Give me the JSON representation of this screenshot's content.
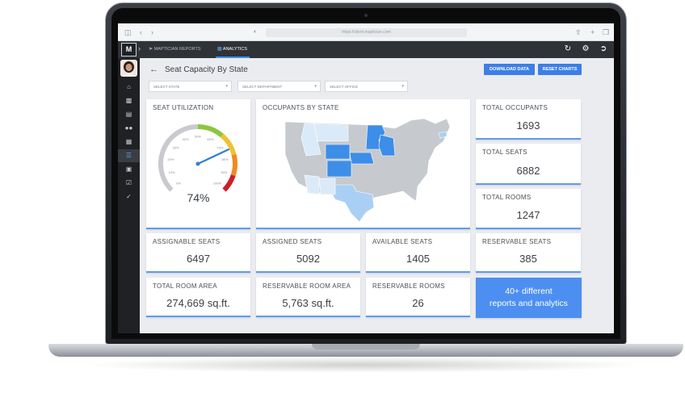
{
  "browser": {
    "url": "https://client.maptician.com"
  },
  "navbar": {
    "logo": "M",
    "tabs": [
      {
        "label": "MAPTICIAN REPORTS",
        "active": false
      },
      {
        "label": "ANALYTICS",
        "active": true
      }
    ],
    "right_icons": [
      "refresh-icon",
      "gear-icon",
      "logout-icon"
    ]
  },
  "sidebar": {
    "items": [
      {
        "icon": "home-icon"
      },
      {
        "icon": "briefcase-icon"
      },
      {
        "icon": "document-icon"
      },
      {
        "icon": "users-icon"
      },
      {
        "icon": "id-card-icon"
      },
      {
        "icon": "list-icon",
        "active": true
      },
      {
        "icon": "badge-icon"
      },
      {
        "icon": "checklist-icon"
      },
      {
        "icon": "check-icon"
      }
    ]
  },
  "header": {
    "title": "Seat Capacity By State",
    "download_label": "DOWNLOAD DATA",
    "reset_label": "RESET CHARTS"
  },
  "filters": [
    {
      "placeholder": "SELECT STATE"
    },
    {
      "placeholder": "SELECT DEPARTMENT"
    },
    {
      "placeholder": "SELECT OFFICE"
    }
  ],
  "gauge": {
    "title": "SEAT UTILIZATION",
    "value_text": "74%",
    "value": 0.74,
    "tick_labels": [
      "0%",
      "10%",
      "20%",
      "30%",
      "40%",
      "50%",
      "60%",
      "70%",
      "80%",
      "90%",
      "100%"
    ],
    "band_colors": [
      "#c8cacd",
      "#8cc63f",
      "#f2c12e",
      "#f08a24",
      "#c8202a"
    ],
    "needle_color": "#2f7fd0"
  },
  "map": {
    "title": "OCCUPANTS BY STATE",
    "colors": {
      "none": "#c6c9cd",
      "low": "#dbeaf8",
      "mid": "#a9cff4",
      "high": "#3d8ee8"
    }
  },
  "stats": {
    "total_occupants": {
      "label": "TOTAL OCCUPANTS",
      "value": "1693"
    },
    "total_seats": {
      "label": "TOTAL SEATS",
      "value": "6882"
    },
    "total_rooms": {
      "label": "TOTAL ROOMS",
      "value": "1247"
    },
    "assignable_seats": {
      "label": "ASSIGNABLE SEATS",
      "value": "6497"
    },
    "assigned_seats": {
      "label": "ASSIGNED SEATS",
      "value": "5092"
    },
    "available_seats": {
      "label": "AVAILABLE SEATS",
      "value": "1405"
    },
    "reservable_seats": {
      "label": "RESERVABLE SEATS",
      "value": "385"
    },
    "total_room_area": {
      "label": "TOTAL ROOM AREA",
      "value": "274,669 sq.ft."
    },
    "reservable_room_area": {
      "label": "RESERVABLE ROOM AREA",
      "value": "5,763 sq.ft."
    },
    "reservable_rooms": {
      "label": "RESERVABLE ROOMS",
      "value": "26"
    }
  },
  "promo": {
    "line1": "40+ different",
    "line2": "reports and analytics"
  }
}
